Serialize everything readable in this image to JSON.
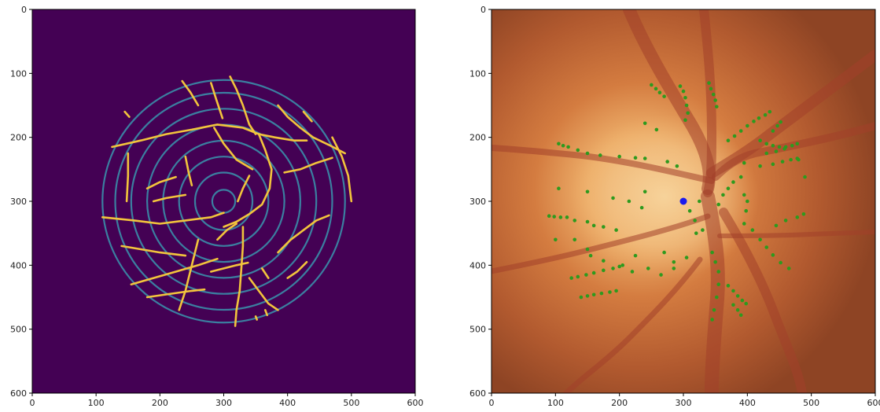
{
  "chart_data": [
    {
      "type": "heatmap",
      "xlim": [
        0,
        600
      ],
      "ylim": [
        600,
        0
      ],
      "xticks": [
        "0",
        "100",
        "200",
        "300",
        "400",
        "500",
        "600"
      ],
      "yticks": [
        "0",
        "100",
        "200",
        "300",
        "400",
        "500",
        "600"
      ],
      "grid": false,
      "background_color": "#440154",
      "ring_color": "#3b7fa0",
      "vessel_color": "#f2c43c",
      "ring_center": [
        300,
        300
      ],
      "ring_radii": [
        18,
        45,
        70,
        95,
        120,
        145,
        170,
        190
      ],
      "vessels": [
        [
          [
            110,
            325
          ],
          [
            160,
            330
          ],
          [
            200,
            335
          ],
          [
            240,
            330
          ],
          [
            280,
            325
          ],
          [
            300,
            318
          ]
        ],
        [
          [
            125,
            215
          ],
          [
            170,
            205
          ],
          [
            210,
            195
          ],
          [
            250,
            188
          ],
          [
            290,
            180
          ],
          [
            330,
            185
          ],
          [
            355,
            195
          ]
        ],
        [
          [
            355,
            195
          ],
          [
            365,
            220
          ],
          [
            375,
            250
          ],
          [
            372,
            280
          ],
          [
            360,
            305
          ],
          [
            340,
            320
          ],
          [
            320,
            332
          ],
          [
            300,
            340
          ]
        ],
        [
          [
            285,
            185
          ],
          [
            300,
            210
          ],
          [
            320,
            235
          ],
          [
            345,
            250
          ]
        ],
        [
          [
            235,
            112
          ],
          [
            248,
            130
          ],
          [
            260,
            150
          ]
        ],
        [
          [
            280,
            115
          ],
          [
            288,
            140
          ],
          [
            298,
            170
          ]
        ],
        [
          [
            310,
            105
          ],
          [
            320,
            125
          ],
          [
            330,
            150
          ],
          [
            340,
            180
          ],
          [
            350,
            195
          ]
        ],
        [
          [
            385,
            150
          ],
          [
            400,
            168
          ],
          [
            420,
            185
          ],
          [
            440,
            200
          ],
          [
            465,
            212
          ],
          [
            490,
            225
          ]
        ],
        [
          [
            425,
            160
          ],
          [
            438,
            175
          ]
        ],
        [
          [
            355,
            195
          ],
          [
            380,
            200
          ],
          [
            410,
            205
          ],
          [
            430,
            205
          ]
        ],
        [
          [
            470,
            200
          ],
          [
            485,
            230
          ],
          [
            495,
            260
          ],
          [
            500,
            300
          ]
        ],
        [
          [
            330,
            340
          ],
          [
            330,
            370
          ],
          [
            328,
            400
          ],
          [
            325,
            440
          ],
          [
            320,
            470
          ],
          [
            318,
            495
          ]
        ],
        [
          [
            260,
            360
          ],
          [
            250,
            400
          ],
          [
            240,
            440
          ],
          [
            230,
            470
          ]
        ],
        [
          [
            140,
            370
          ],
          [
            170,
            375
          ],
          [
            200,
            380
          ],
          [
            240,
            385
          ]
        ],
        [
          [
            155,
            430
          ],
          [
            190,
            420
          ],
          [
            225,
            410
          ],
          [
            260,
            400
          ],
          [
            290,
            390
          ]
        ],
        [
          [
            180,
            450
          ],
          [
            215,
            445
          ],
          [
            250,
            440
          ],
          [
            270,
            438
          ]
        ],
        [
          [
            340,
            420
          ],
          [
            355,
            440
          ],
          [
            370,
            460
          ],
          [
            385,
            470
          ]
        ],
        [
          [
            360,
            405
          ],
          [
            370,
            420
          ]
        ],
        [
          [
            385,
            380
          ],
          [
            405,
            360
          ],
          [
            425,
            345
          ],
          [
            445,
            330
          ],
          [
            465,
            322
          ]
        ],
        [
          [
            400,
            420
          ],
          [
            415,
            410
          ],
          [
            430,
            395
          ]
        ],
        [
          [
            395,
            255
          ],
          [
            420,
            250
          ],
          [
            445,
            240
          ],
          [
            470,
            232
          ]
        ],
        [
          [
            150,
            225
          ],
          [
            150,
            260
          ],
          [
            148,
            300
          ]
        ],
        [
          [
            145,
            160
          ],
          [
            152,
            168
          ]
        ],
        [
          [
            180,
            280
          ],
          [
            200,
            270
          ],
          [
            225,
            262
          ]
        ],
        [
          [
            190,
            300
          ],
          [
            210,
            295
          ],
          [
            240,
            290
          ]
        ],
        [
          [
            240,
            230
          ],
          [
            245,
            255
          ],
          [
            250,
            275
          ]
        ],
        [
          [
            290,
            360
          ],
          [
            305,
            345
          ],
          [
            320,
            335
          ]
        ],
        [
          [
            340,
            260
          ],
          [
            330,
            280
          ],
          [
            322,
            300
          ]
        ],
        [
          [
            280,
            410
          ],
          [
            300,
            405
          ],
          [
            320,
            400
          ],
          [
            338,
            396
          ]
        ],
        [
          [
            350,
            480
          ],
          [
            352,
            485
          ]
        ],
        [
          [
            365,
            470
          ],
          [
            368,
            478
          ]
        ]
      ]
    },
    {
      "type": "scatter",
      "xlim": [
        0,
        600
      ],
      "ylim": [
        600,
        0
      ],
      "xticks": [
        "0",
        "100",
        "200",
        "300",
        "400",
        "500",
        "600"
      ],
      "yticks": [
        "0",
        "100",
        "200",
        "300",
        "400",
        "500",
        "600"
      ],
      "grid": false,
      "center_point": [
        300,
        300
      ],
      "center_color": "#1a1aee",
      "point_color": "#2e9a1e",
      "points": [
        [
          250,
          118
        ],
        [
          257,
          124
        ],
        [
          263,
          130
        ],
        [
          270,
          136
        ],
        [
          295,
          120
        ],
        [
          300,
          128
        ],
        [
          303,
          138
        ],
        [
          305,
          150
        ],
        [
          307,
          162
        ],
        [
          303,
          173
        ],
        [
          340,
          115
        ],
        [
          343,
          124
        ],
        [
          347,
          133
        ],
        [
          350,
          142
        ],
        [
          352,
          152
        ],
        [
          240,
          178
        ],
        [
          258,
          188
        ],
        [
          418,
          170
        ],
        [
          410,
          175
        ],
        [
          400,
          182
        ],
        [
          390,
          190
        ],
        [
          380,
          198
        ],
        [
          370,
          205
        ],
        [
          428,
          165
        ],
        [
          435,
          160
        ],
        [
          440,
          190
        ],
        [
          447,
          182
        ],
        [
          452,
          176
        ],
        [
          105,
          210
        ],
        [
          112,
          213
        ],
        [
          120,
          215
        ],
        [
          135,
          220
        ],
        [
          150,
          225
        ],
        [
          170,
          228
        ],
        [
          200,
          230
        ],
        [
          225,
          232
        ],
        [
          240,
          233
        ],
        [
          290,
          245
        ],
        [
          275,
          238
        ],
        [
          420,
          205
        ],
        [
          430,
          210
        ],
        [
          440,
          213
        ],
        [
          450,
          215
        ],
        [
          460,
          215
        ],
        [
          470,
          213
        ],
        [
          478,
          210
        ],
        [
          430,
          225
        ],
        [
          445,
          222
        ],
        [
          458,
          218
        ],
        [
          395,
          240
        ],
        [
          420,
          245
        ],
        [
          440,
          242
        ],
        [
          455,
          238
        ],
        [
          468,
          235
        ],
        [
          478,
          233
        ],
        [
          490,
          262
        ],
        [
          480,
          235
        ],
        [
          105,
          280
        ],
        [
          150,
          285
        ],
        [
          190,
          295
        ],
        [
          215,
          300
        ],
        [
          240,
          285
        ],
        [
          235,
          310
        ],
        [
          310,
          315
        ],
        [
          318,
          330
        ],
        [
          325,
          300
        ],
        [
          355,
          305
        ],
        [
          362,
          290
        ],
        [
          370,
          280
        ],
        [
          378,
          270
        ],
        [
          390,
          262
        ],
        [
          395,
          290
        ],
        [
          400,
          300
        ],
        [
          398,
          315
        ],
        [
          90,
          323
        ],
        [
          98,
          324
        ],
        [
          108,
          325
        ],
        [
          118,
          325
        ],
        [
          130,
          330
        ],
        [
          150,
          332
        ],
        [
          160,
          338
        ],
        [
          175,
          340
        ],
        [
          195,
          345
        ],
        [
          100,
          360
        ],
        [
          130,
          360
        ],
        [
          150,
          375
        ],
        [
          320,
          350
        ],
        [
          330,
          345
        ],
        [
          395,
          335
        ],
        [
          408,
          345
        ],
        [
          420,
          360
        ],
        [
          430,
          372
        ],
        [
          440,
          384
        ],
        [
          452,
          396
        ],
        [
          465,
          405
        ],
        [
          445,
          338
        ],
        [
          460,
          330
        ],
        [
          478,
          325
        ],
        [
          488,
          320
        ],
        [
          155,
          385
        ],
        [
          175,
          393
        ],
        [
          200,
          402
        ],
        [
          220,
          410
        ],
        [
          245,
          405
        ],
        [
          225,
          385
        ],
        [
          270,
          380
        ],
        [
          285,
          395
        ],
        [
          305,
          388
        ],
        [
          125,
          420
        ],
        [
          135,
          418
        ],
        [
          148,
          415
        ],
        [
          160,
          412
        ],
        [
          175,
          408
        ],
        [
          190,
          405
        ],
        [
          205,
          400
        ],
        [
          140,
          450
        ],
        [
          150,
          448
        ],
        [
          160,
          446
        ],
        [
          172,
          444
        ],
        [
          185,
          442
        ],
        [
          195,
          440
        ],
        [
          265,
          415
        ],
        [
          285,
          405
        ],
        [
          345,
          380
        ],
        [
          350,
          395
        ],
        [
          355,
          410
        ],
        [
          355,
          430
        ],
        [
          352,
          450
        ],
        [
          348,
          470
        ],
        [
          345,
          485
        ],
        [
          370,
          432
        ],
        [
          378,
          440
        ],
        [
          385,
          448
        ],
        [
          392,
          455
        ],
        [
          398,
          460
        ],
        [
          378,
          462
        ],
        [
          385,
          470
        ],
        [
          390,
          478
        ]
      ]
    }
  ]
}
